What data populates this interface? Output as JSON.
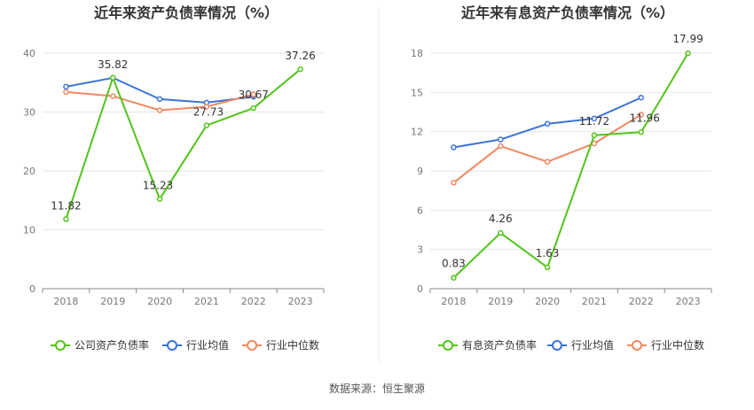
{
  "source_note": "数据来源：恒生聚源",
  "colors": {
    "company": "#52c41a",
    "average": "#3b73d6",
    "median": "#f08860"
  },
  "chart_data": [
    {
      "type": "line",
      "title": "近年来资产负债率情况（%）",
      "categories": [
        "2018",
        "2019",
        "2020",
        "2021",
        "2022",
        "2023"
      ],
      "ylim": [
        0,
        40
      ],
      "yticks": [
        0,
        10,
        20,
        30,
        40
      ],
      "grid": true,
      "legend_position": "bottom",
      "series": [
        {
          "name": "公司资产负债率",
          "color": "#52c41a",
          "values": [
            11.82,
            35.82,
            15.23,
            27.73,
            30.67,
            37.26
          ],
          "labels": [
            "11.82",
            "35.82",
            "15.23",
            "27.73",
            "30.67",
            "37.26"
          ]
        },
        {
          "name": "行业均值",
          "color": "#3b73d6",
          "values": [
            34.3,
            35.8,
            32.2,
            31.6,
            32.6,
            null
          ]
        },
        {
          "name": "行业中位数",
          "color": "#f08860",
          "values": [
            33.4,
            32.7,
            30.3,
            30.9,
            33.0,
            null
          ]
        }
      ]
    },
    {
      "type": "line",
      "title": "近年来有息资产负债率情况（%）",
      "categories": [
        "2018",
        "2019",
        "2020",
        "2021",
        "2022",
        "2023"
      ],
      "ylim": [
        0,
        18
      ],
      "yticks": [
        0,
        3,
        6,
        9,
        12,
        15,
        18
      ],
      "grid": true,
      "legend_position": "bottom",
      "series": [
        {
          "name": "有息资产负债率",
          "color": "#52c41a",
          "values": [
            0.83,
            4.26,
            1.63,
            11.72,
            11.96,
            17.99
          ],
          "labels": [
            "0.83",
            "4.26",
            "1.63",
            "11.72",
            "11.96",
            "17.99"
          ]
        },
        {
          "name": "行业均值",
          "color": "#3b73d6",
          "values": [
            10.8,
            11.4,
            12.6,
            13.0,
            14.6,
            null
          ]
        },
        {
          "name": "行业中位数",
          "color": "#f08860",
          "values": [
            8.1,
            10.9,
            9.7,
            11.1,
            13.3,
            null
          ]
        }
      ]
    }
  ]
}
